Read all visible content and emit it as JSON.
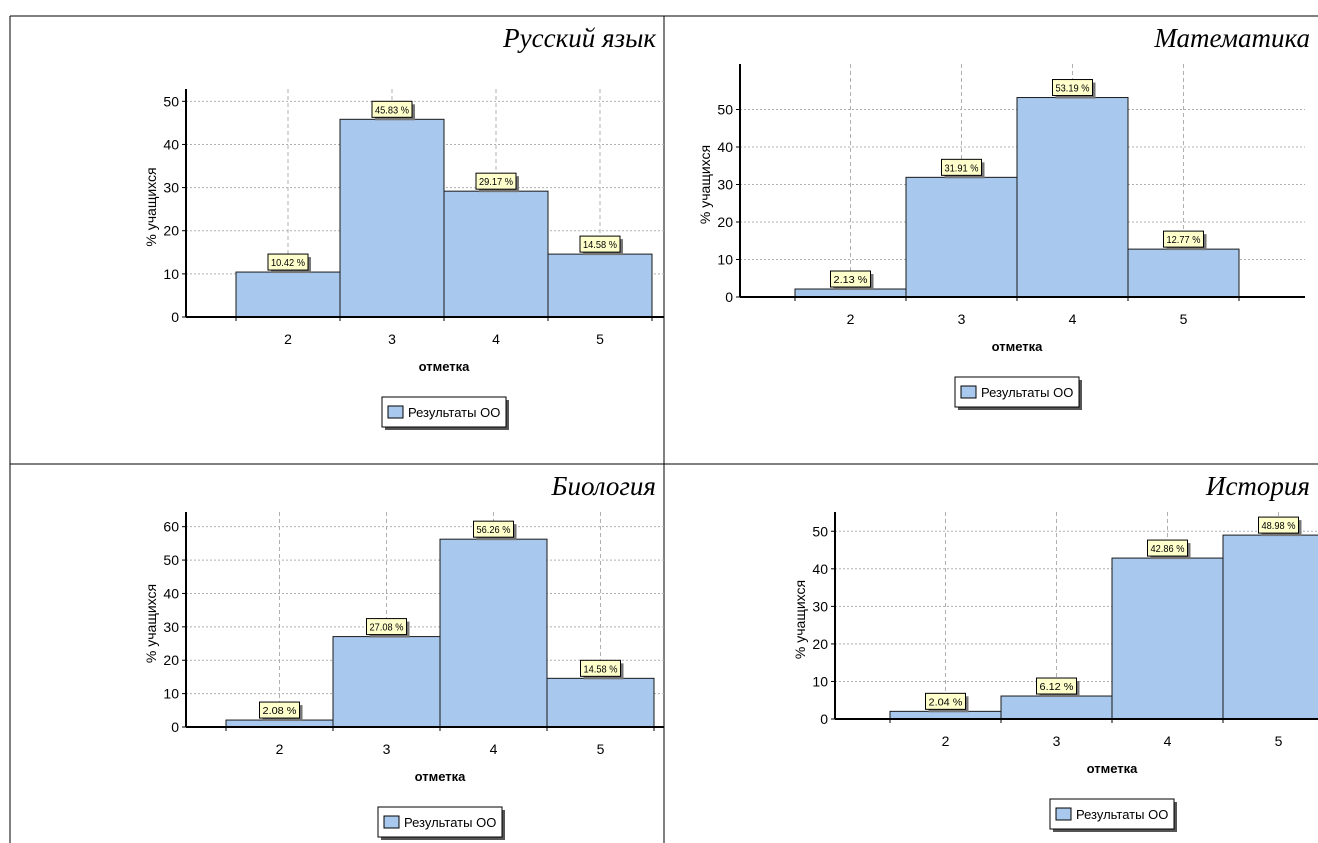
{
  "chart_data": [
    {
      "type": "bar",
      "title": "Русский язык",
      "xlabel": "отметка",
      "ylabel": "% учащихся",
      "categories": [
        "2",
        "3",
        "4",
        "5"
      ],
      "series": [
        {
          "name": "Результаты ОО",
          "values": [
            10.42,
            45.83,
            29.17,
            14.58
          ]
        }
      ],
      "data_labels": [
        "10.42 %",
        "45.83 %",
        "29.17 %",
        "14.58 %"
      ],
      "yticks": [
        0,
        10,
        20,
        30,
        40,
        50
      ],
      "ylim": [
        0,
        51
      ],
      "legend": "bottom-center",
      "grid": true
    },
    {
      "type": "bar",
      "title": "Математика",
      "xlabel": "отметка",
      "ylabel": "% учащихся",
      "categories": [
        "2",
        "3",
        "4",
        "5"
      ],
      "series": [
        {
          "name": "Результаты ОО",
          "values": [
            2.13,
            31.91,
            53.19,
            12.77
          ]
        }
      ],
      "data_labels": [
        "2.13 %",
        "31.91 %",
        "53.19 %",
        "12.77 %"
      ],
      "yticks": [
        0,
        10,
        20,
        30,
        40,
        50
      ],
      "ylim": [
        0,
        60
      ],
      "legend": "bottom-center",
      "grid": true
    },
    {
      "type": "bar",
      "title": "Биология",
      "xlabel": "отметка",
      "ylabel": "% учащихся",
      "categories": [
        "2",
        "3",
        "4",
        "5"
      ],
      "series": [
        {
          "name": "Результаты ОО",
          "values": [
            2.08,
            27.08,
            56.26,
            14.58
          ]
        }
      ],
      "data_labels": [
        "2.08 %",
        "27.08 %",
        "56.26 %",
        "14.58 %"
      ],
      "yticks": [
        0,
        10,
        20,
        30,
        40,
        50,
        60
      ],
      "ylim": [
        0,
        62
      ],
      "legend": "bottom-center",
      "grid": true
    },
    {
      "type": "bar",
      "title": "История",
      "xlabel": "отметка",
      "ylabel": "% учащихся",
      "categories": [
        "2",
        "3",
        "4",
        "5"
      ],
      "series": [
        {
          "name": "Результаты ОО",
          "values": [
            2.04,
            6.12,
            42.86,
            48.98
          ]
        }
      ],
      "data_labels": [
        "2.04 %",
        "6.12 %",
        "42.86 %",
        "48.98 %"
      ],
      "yticks": [
        0,
        10,
        20,
        30,
        40,
        50
      ],
      "ylim": [
        0,
        53
      ],
      "legend": "bottom-center",
      "grid": true
    }
  ],
  "colors": {
    "bar_fill": "#a8c8ee",
    "bar_stroke": "#1a1a1a",
    "label_fill": "#ffffcc",
    "label_shadow": "#777777",
    "grid": "#b0b0b0",
    "border": "#000000"
  },
  "icons": {
    "legend_swatch": "blue-square-swatch"
  }
}
